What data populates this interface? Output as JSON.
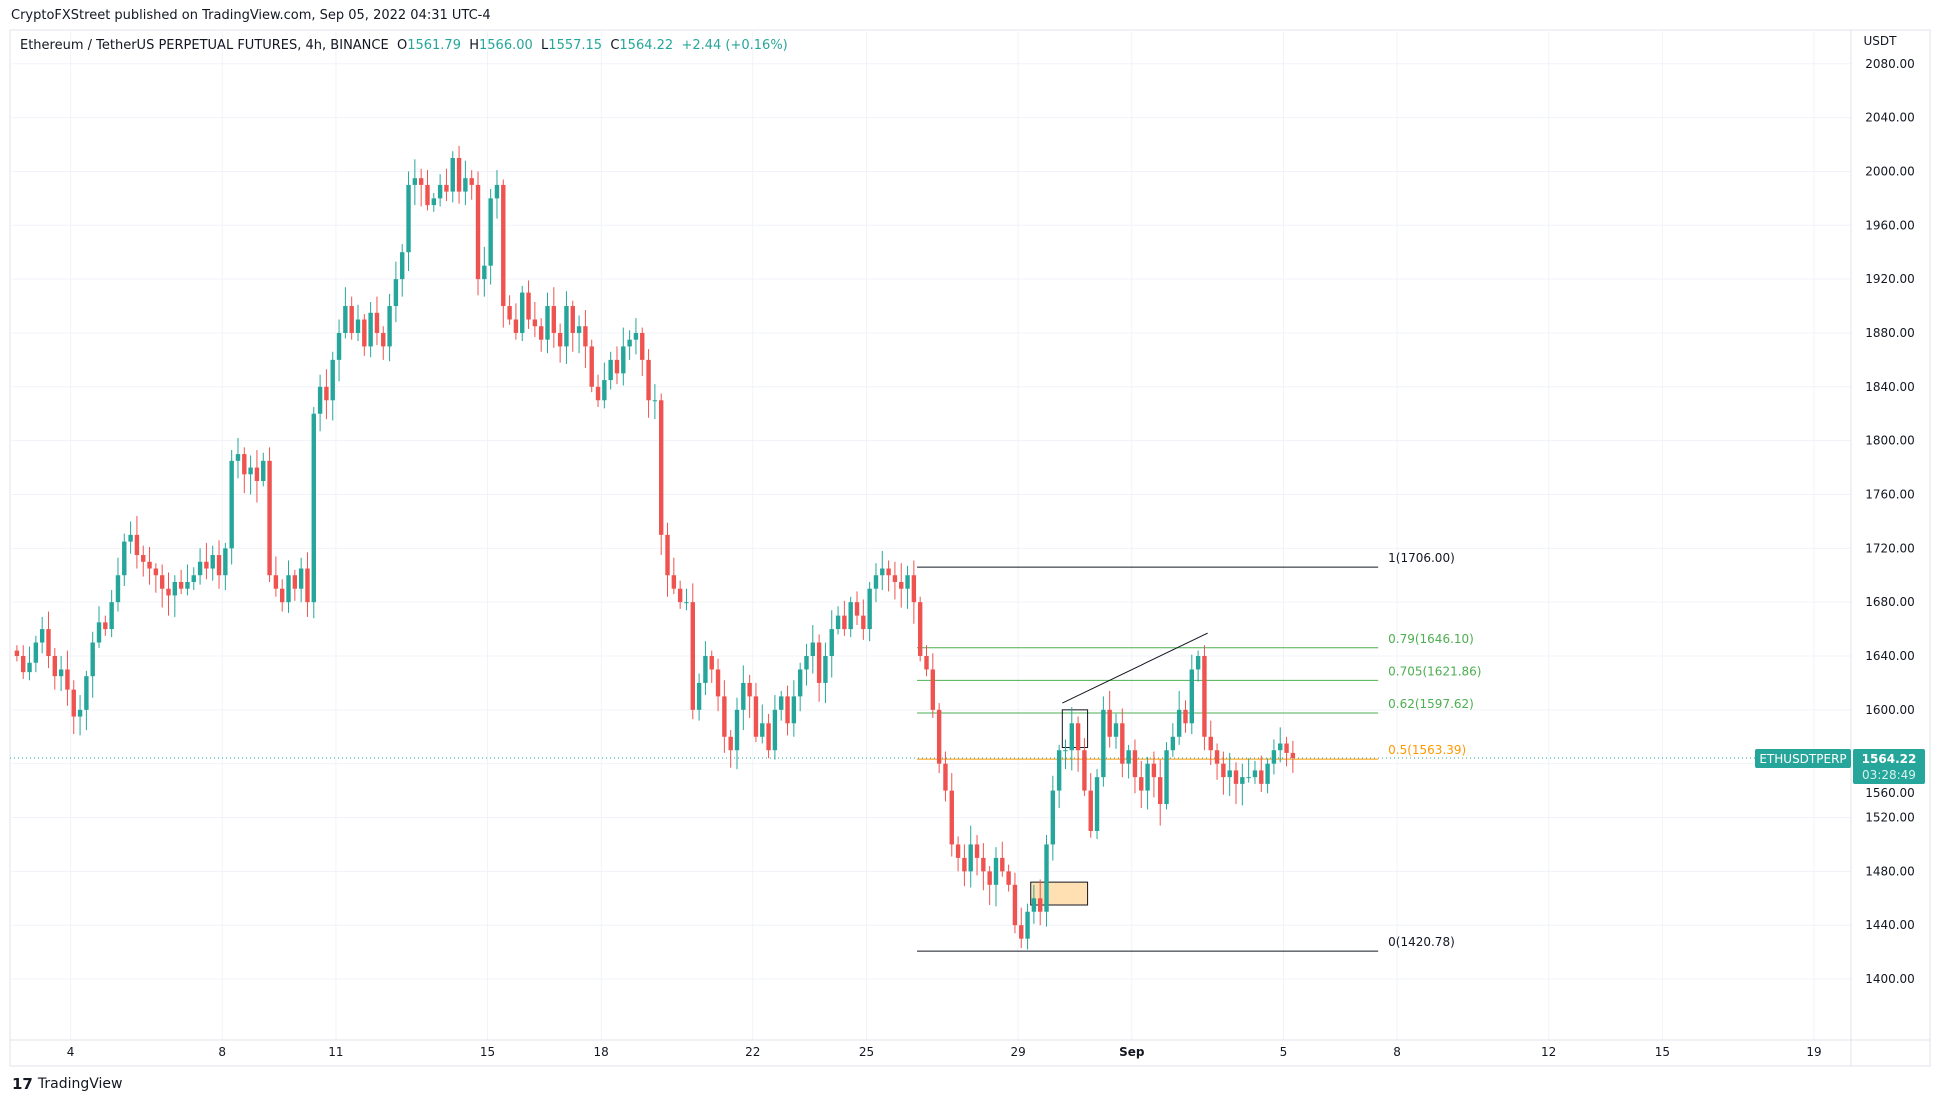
{
  "publish_line": "CryptoFXStreet published on TradingView.com, Sep 05, 2022 04:31 UTC-4",
  "legend": {
    "symbol": "Ethereum / TetherUS PERPETUAL FUTURES, 4h, BINANCE",
    "o_label": "O",
    "o": "1561.79",
    "h_label": "H",
    "h": "1566.00",
    "l_label": "L",
    "l": "1557.15",
    "c_label": "C",
    "c": "1564.22",
    "change": "+2.44 (+0.16%)"
  },
  "currency": "USDT",
  "ticker_label": "ETHUSDTPERP",
  "last_price": "1564.22",
  "countdown": "03:28:49",
  "footer_logo": "TradingView",
  "colors": {
    "up": "#26a69a",
    "down": "#ef5350",
    "fib_green": "#4caf50",
    "fib_orange": "#ff9800",
    "box_fill": "#ffe0b2"
  },
  "chart_data": {
    "type": "candlestick",
    "interval": "4h",
    "ylim": [
      1380,
      2080
    ],
    "grid": true,
    "y_ticks": [
      1400,
      1440,
      1480,
      1520,
      1560,
      1600,
      1640,
      1680,
      1720,
      1760,
      1800,
      1840,
      1880,
      1920,
      1960,
      2000,
      2040,
      2080
    ],
    "x_ticks": [
      {
        "label": "4",
        "date": "2022-08-04"
      },
      {
        "label": "8",
        "date": "2022-08-08"
      },
      {
        "label": "11",
        "date": "2022-08-11"
      },
      {
        "label": "15",
        "date": "2022-08-15"
      },
      {
        "label": "18",
        "date": "2022-08-18"
      },
      {
        "label": "22",
        "date": "2022-08-22"
      },
      {
        "label": "25",
        "date": "2022-08-25"
      },
      {
        "label": "29",
        "date": "2022-08-29"
      },
      {
        "label": "Sep",
        "date": "2022-09-01"
      },
      {
        "label": "5",
        "date": "2022-09-05"
      },
      {
        "label": "8",
        "date": "2022-09-08"
      },
      {
        "label": "12",
        "date": "2022-09-12"
      },
      {
        "label": "15",
        "date": "2022-09-15"
      },
      {
        "label": "19",
        "date": "2022-09-19"
      }
    ],
    "first_candle": "2022-08-02T12:00",
    "closes": [
      1640,
      1628,
      1635,
      1650,
      1660,
      1640,
      1625,
      1630,
      1615,
      1595,
      1600,
      1625,
      1650,
      1665,
      1660,
      1680,
      1700,
      1725,
      1730,
      1715,
      1710,
      1705,
      1700,
      1690,
      1685,
      1695,
      1690,
      1695,
      1700,
      1710,
      1705,
      1715,
      1700,
      1720,
      1785,
      1790,
      1775,
      1780,
      1770,
      1785,
      1700,
      1690,
      1680,
      1700,
      1690,
      1705,
      1680,
      1820,
      1840,
      1830,
      1860,
      1880,
      1900,
      1880,
      1890,
      1870,
      1895,
      1880,
      1870,
      1900,
      1920,
      1940,
      1990,
      1995,
      1990,
      1975,
      1980,
      1990,
      1985,
      2010,
      1985,
      1995,
      1990,
      1920,
      1930,
      1980,
      1990,
      1900,
      1890,
      1880,
      1910,
      1890,
      1885,
      1875,
      1900,
      1880,
      1870,
      1900,
      1880,
      1885,
      1870,
      1840,
      1830,
      1845,
      1860,
      1850,
      1870,
      1875,
      1880,
      1860,
      1830,
      1830,
      1730,
      1700,
      1690,
      1680,
      1680,
      1600,
      1620,
      1640,
      1630,
      1610,
      1580,
      1570,
      1600,
      1620,
      1610,
      1580,
      1590,
      1570,
      1600,
      1610,
      1590,
      1610,
      1630,
      1640,
      1650,
      1620,
      1640,
      1660,
      1670,
      1660,
      1680,
      1670,
      1660,
      1690,
      1700,
      1705,
      1700,
      1695,
      1690,
      1700,
      1680,
      1640,
      1630,
      1600,
      1560,
      1540,
      1500,
      1490,
      1480,
      1500,
      1490,
      1480,
      1470,
      1490,
      1480,
      1470,
      1440,
      1430,
      1450,
      1460,
      1450,
      1500,
      1540,
      1570,
      1570,
      1590,
      1570,
      1540,
      1510,
      1550,
      1600,
      1580,
      1590,
      1560,
      1570,
      1550,
      1540,
      1560,
      1550,
      1530,
      1570,
      1580,
      1600,
      1590,
      1630,
      1640,
      1580,
      1570,
      1560,
      1550,
      1555,
      1545,
      1550,
      1550,
      1555,
      1545,
      1560,
      1570,
      1575,
      1568,
      1564.22
    ],
    "fib": {
      "start": "2022-08-26T08:00",
      "end": "2022-09-07T12:00",
      "levels": [
        {
          "label": "1(1706.00)",
          "price": 1706.0,
          "color": "#131722"
        },
        {
          "label": "0.79(1646.10)",
          "price": 1646.1,
          "color": "#4caf50"
        },
        {
          "label": "0.705(1621.86)",
          "price": 1621.86,
          "color": "#4caf50"
        },
        {
          "label": "0.62(1597.62)",
          "price": 1597.62,
          "color": "#4caf50"
        },
        {
          "label": "0.5(1563.39)",
          "price": 1563.39,
          "color": "#ff9800"
        },
        {
          "label": "0(1420.78)",
          "price": 1420.78,
          "color": "#131722"
        }
      ]
    },
    "trendline": [
      {
        "date": "2022-08-30T04:00",
        "price": 1605
      },
      {
        "date": "2022-09-03T00:00",
        "price": 1657
      }
    ],
    "boxes": [
      {
        "from": "2022-08-29T08:00",
        "to": "2022-08-30T20:00",
        "top": 1472,
        "bottom": 1455,
        "filled": true
      },
      {
        "from": "2022-08-30T04:00",
        "to": "2022-08-30T20:00",
        "top": 1600,
        "bottom": 1572,
        "filled": false
      }
    ]
  }
}
